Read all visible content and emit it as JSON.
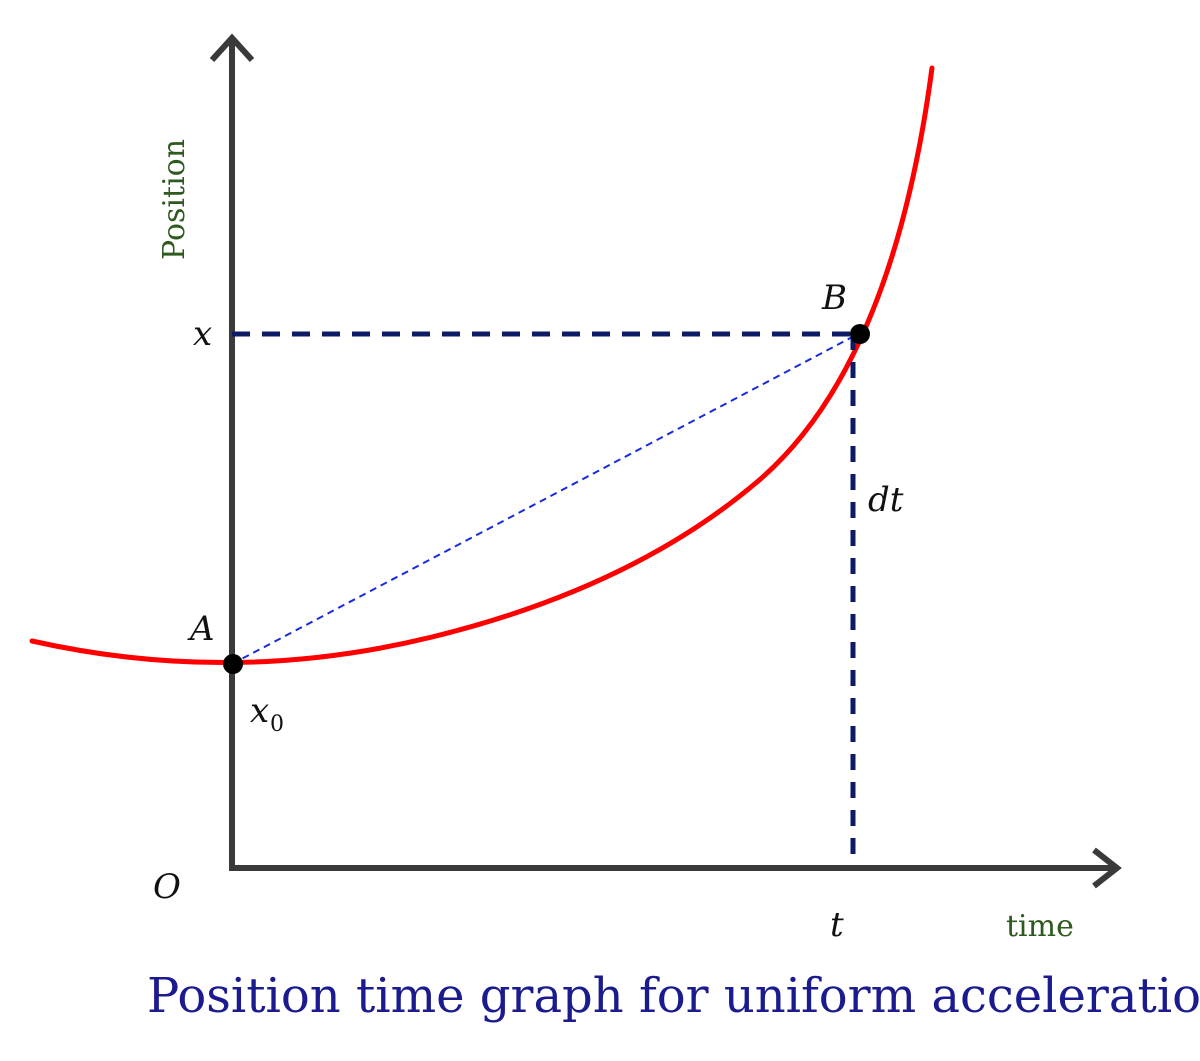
{
  "labels": {
    "y_axis_title": "Position",
    "x_axis_title": "time",
    "origin": "O",
    "x_mark": "x",
    "t_mark": "t",
    "x0_base": "x",
    "x0_sub": "0",
    "point_a": "A",
    "point_b": "B",
    "dt": "dt"
  },
  "caption": "Position time graph for uniform acceleration",
  "colors": {
    "axes": "#3a3a3a",
    "curve": "#ff0000",
    "dashed_guides": "#0d1a66",
    "chord": "#1a2bdc",
    "points": "#000000",
    "axis_titles": "#2f5a1f",
    "caption": "#1b1b8f"
  }
}
